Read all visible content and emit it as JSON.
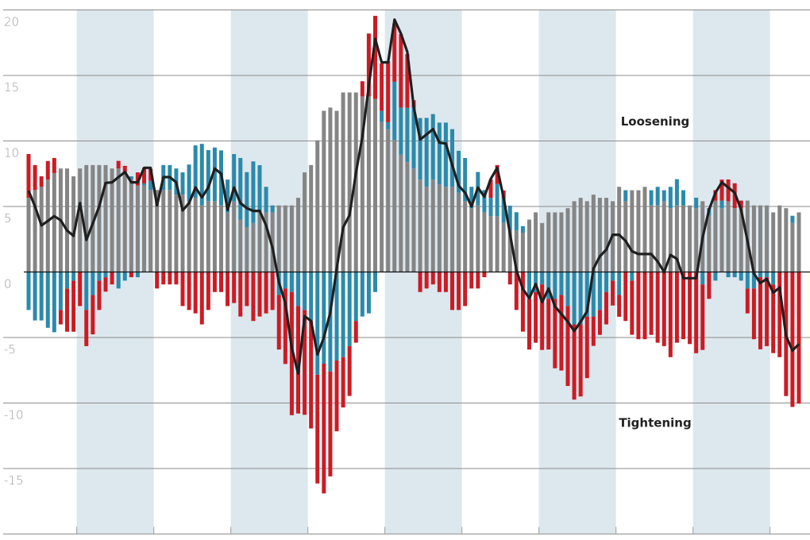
{
  "chart_data": {
    "type": "bar",
    "stacked": true,
    "frequency": "monthly",
    "ylim": [
      -20,
      20
    ],
    "yticks": [
      20,
      15,
      10,
      5,
      0,
      -5,
      -10,
      -15
    ],
    "ytick_labels": [
      "20",
      "15",
      "10",
      "5",
      "0",
      "-5",
      "-10",
      "-15"
    ],
    "grid": true,
    "legend": "none",
    "shaded_periods": [
      [
        8,
        19
      ],
      [
        32,
        43
      ],
      [
        56,
        67
      ],
      [
        80,
        91
      ],
      [
        104,
        115
      ]
    ],
    "annotations": [
      {
        "text": "Loosening",
        "y": 11.5
      },
      {
        "text": "Tightening",
        "y": -11.5
      }
    ],
    "colors": {
      "gray": "#858585",
      "blue": "#2b8aab",
      "red": "#cc1b24",
      "line": "#1f1f1f",
      "band": "#dde7ee",
      "grid": "#8c8c8c"
    },
    "series": [
      {
        "color": "#858585",
        "values": [
          5.66,
          6.26,
          6.5,
          7.05,
          7.55,
          7.9,
          7.9,
          7.3,
          7.9,
          8.16,
          8.16,
          8.16,
          8.16,
          7.9,
          7.9,
          7.6,
          7.05,
          6.6,
          6.6,
          6.26,
          6.26,
          6.26,
          6.26,
          5.9,
          5.9,
          5.4,
          5.66,
          5.08,
          5.4,
          5.4,
          5.08,
          4.55,
          5.4,
          4.0,
          3.42,
          3.74,
          4.55,
          4.55,
          4.55,
          5.08,
          5.08,
          5.08,
          5.66,
          7.6,
          8.16,
          10.05,
          12.3,
          12.55,
          12.3,
          13.7,
          13.7,
          13.7,
          13.4,
          13.4,
          13.2,
          11.45,
          10.9,
          10.05,
          8.95,
          8.4,
          7.9,
          7.05,
          6.5,
          7.05,
          6.7,
          6.5,
          6.5,
          6.05,
          5.4,
          4.87,
          5.08,
          4.55,
          4.26,
          4.26,
          3.74,
          3.16,
          3.16,
          3.0,
          4.0,
          4.55,
          3.74,
          4.55,
          4.55,
          4.55,
          4.87,
          5.4,
          5.66,
          5.4,
          5.9,
          5.66,
          5.66,
          5.4,
          6.5,
          5.4,
          6.24,
          6.24,
          6.5,
          5.08,
          5.08,
          5.4,
          4.87,
          5.08,
          5.08,
          5.08,
          4.87,
          5.4,
          4.3,
          5.45,
          4.87,
          5.4,
          4.87,
          4.87,
          5.45,
          5.08,
          5.08,
          5.08,
          4.55,
          5.08,
          4.87,
          3.74,
          4.55
        ]
      },
      {
        "color": "#2b8aab",
        "values": [
          -2.9,
          -3.7,
          -3.7,
          -4.26,
          -4.6,
          -2.9,
          -1.26,
          -0.66,
          0,
          -2.9,
          -1.76,
          -0.66,
          -0.4,
          0,
          -1.26,
          -0.66,
          0.25,
          -0.4,
          0.15,
          0.7,
          0,
          1.9,
          1.9,
          2.0,
          1.7,
          2.8,
          4.0,
          4.7,
          3.9,
          4.1,
          4.2,
          2.5,
          3.6,
          4.7,
          4.2,
          4.7,
          3.6,
          1.95,
          0.53,
          -1.76,
          -1.26,
          -1.53,
          -2.6,
          -2.9,
          -3.74,
          -7.84,
          -7.0,
          -7.6,
          -6.76,
          -6.5,
          -5.66,
          -3.74,
          -3.4,
          -3.16,
          -1.53,
          0.84,
          0.53,
          4.47,
          3.6,
          4.13,
          4.66,
          4.7,
          5.26,
          5.0,
          4.7,
          4.9,
          4.4,
          3.2,
          3.3,
          1.63,
          2.55,
          1.7,
          1.4,
          2.45,
          1.9,
          1.9,
          1.4,
          0.5,
          -2.05,
          -1.53,
          -0.95,
          -2.05,
          -2.05,
          -1.76,
          -2.6,
          -4.0,
          -4.0,
          -3.4,
          -3.4,
          -2.9,
          -1.53,
          -0.66,
          -1.76,
          0.84,
          -0.66,
          0,
          0,
          1.16,
          1.42,
          0.84,
          1.63,
          2.0,
          1.16,
          0,
          0.8,
          -0.95,
          0.58,
          -0.66,
          0.58,
          -0.4,
          -0.4,
          -0.66,
          -1.26,
          -1.26,
          -0.4,
          -0.4,
          -0.95,
          0,
          0,
          0.55,
          0
        ]
      },
      {
        "color": "#cc1b24",
        "values": [
          3.34,
          1.9,
          0.8,
          1.42,
          1.15,
          -1.1,
          -3.3,
          -3.9,
          -2.6,
          -2.76,
          -3.0,
          -2.24,
          -1.1,
          -0.95,
          0.58,
          0.5,
          -0.4,
          1.0,
          1.2,
          0.9,
          -1.26,
          -0.95,
          -0.95,
          -0.95,
          -2.6,
          -2.9,
          -3.16,
          -4.0,
          -2.9,
          -1.53,
          -1.53,
          -2.6,
          -2.37,
          -3.4,
          -2.6,
          -3.74,
          -3.4,
          -3.16,
          -2.9,
          -4.16,
          -5.76,
          -9.4,
          -8.2,
          -8.0,
          -8.2,
          -8.3,
          -9.9,
          -8.0,
          -5.4,
          -3.84,
          -3.8,
          -1.66,
          1.16,
          4.8,
          6.35,
          3.63,
          4.66,
          4.42,
          5.6,
          4.1,
          0.55,
          -1.53,
          -1.26,
          -0.95,
          -1.53,
          -1.53,
          -2.9,
          -2.9,
          -2.6,
          -1.26,
          -1.26,
          -0.4,
          1.4,
          1.45,
          0.58,
          -0.95,
          -2.9,
          -4.55,
          -3.87,
          -3.87,
          -5.0,
          -3.87,
          -5.3,
          -5.76,
          -6.1,
          -5.74,
          -5.5,
          -4.7,
          -2.24,
          -1.9,
          -2.47,
          -1.9,
          -1.66,
          -3.74,
          -4.13,
          -5.13,
          -5.13,
          -4.8,
          -5.4,
          -5.66,
          -6.5,
          -5.4,
          -5.13,
          -5.5,
          -6.2,
          -5.0,
          -2.05,
          0.8,
          1.6,
          1.66,
          1.9,
          0.58,
          -1.9,
          -3.87,
          -5.5,
          -5.26,
          -5.24,
          -6.5,
          -9.47,
          -10.3,
          -10.05
        ]
      }
    ],
    "line": {
      "color": "#1f1f1f",
      "values": [
        6.2,
        5.0,
        3.55,
        3.9,
        4.26,
        3.95,
        3.16,
        2.76,
        5.26,
        2.45,
        3.7,
        5.0,
        6.8,
        6.84,
        7.24,
        7.63,
        6.84,
        6.84,
        7.95,
        7.95,
        5.08,
        7.24,
        7.24,
        6.84,
        4.7,
        5.26,
        6.45,
        5.7,
        6.45,
        7.9,
        7.5,
        4.74,
        6.45,
        5.26,
        4.87,
        4.66,
        4.66,
        3.55,
        1.84,
        -0.8,
        -2.37,
        -5.8,
        -7.76,
        -3.37,
        -3.74,
        -6.3,
        -5.0,
        -3.1,
        0.26,
        3.4,
        4.34,
        7.6,
        10.3,
        14.2,
        17.8,
        16.0,
        16.0,
        19.26,
        18.2,
        16.8,
        12.6,
        10.1,
        10.5,
        10.9,
        9.87,
        9.8,
        8.16,
        6.58,
        6.05,
        5.0,
        6.45,
        5.74,
        7.1,
        7.95,
        5.66,
        2.9,
        0.13,
        -1.3,
        -2.0,
        -0.92,
        -2.3,
        -1.26,
        -2.63,
        -3.2,
        -3.8,
        -4.5,
        -3.8,
        -3.0,
        0.26,
        1.2,
        1.7,
        2.84,
        2.84,
        2.37,
        1.58,
        1.37,
        1.37,
        1.37,
        0.8,
        0,
        1.3,
        1.0,
        -0.47,
        -0.47,
        -0.47,
        2.63,
        4.74,
        6.05,
        6.84,
        6.45,
        6.05,
        4.74,
        2.37,
        -0.13,
        -0.84,
        -0.53,
        -1.58,
        -1.18,
        -4.87,
        -6.0,
        -5.5
      ]
    }
  }
}
